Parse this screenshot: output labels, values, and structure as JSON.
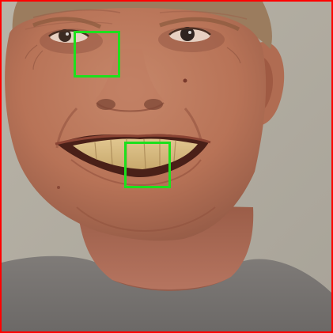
{
  "image": {
    "subject": "face-photo",
    "frame_color": "#ff0000",
    "box_color": "#1de01d",
    "box_count": 2
  },
  "boxes": [
    {
      "label": "region-near-left-eye"
    },
    {
      "label": "region-mouth-teeth"
    }
  ]
}
